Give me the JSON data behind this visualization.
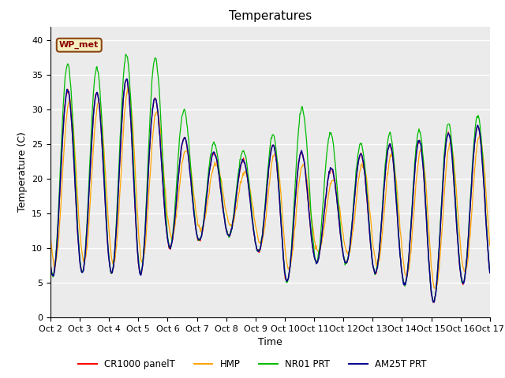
{
  "title": "Temperatures",
  "xlabel": "Time",
  "ylabel": "Temperature (C)",
  "ylim": [
    0,
    42
  ],
  "xlim": [
    0,
    360
  ],
  "xtick_labels": [
    "Oct 2",
    "Oct 3",
    "Oct 4",
    "Oct 5",
    "Oct 6",
    "Oct 7",
    "Oct 8",
    "Oct 9",
    "Oct 10",
    "Oct 11",
    "Oct 12",
    "Oct 13",
    "Oct 14",
    "Oct 15",
    "Oct 16",
    "Oct 17"
  ],
  "ytick_vals": [
    0,
    5,
    10,
    15,
    20,
    25,
    30,
    35,
    40
  ],
  "annotation_text": "WP_met",
  "annotation_bg": "#F5F0C0",
  "annotation_border": "#8B4513",
  "annotation_textcolor": "#8B0000",
  "line_colors": {
    "CR1000": "#FF0000",
    "HMP": "#FFA500",
    "NR01": "#00BB00",
    "AM25T": "#000090"
  },
  "legend_labels": [
    "CR1000 panelT",
    "HMP",
    "NR01 PRT",
    "AM25T PRT"
  ],
  "bg_color": "#E8E8E8",
  "title_fontsize": 11,
  "axis_fontsize": 9,
  "tick_fontsize": 8,
  "n_points": 720
}
